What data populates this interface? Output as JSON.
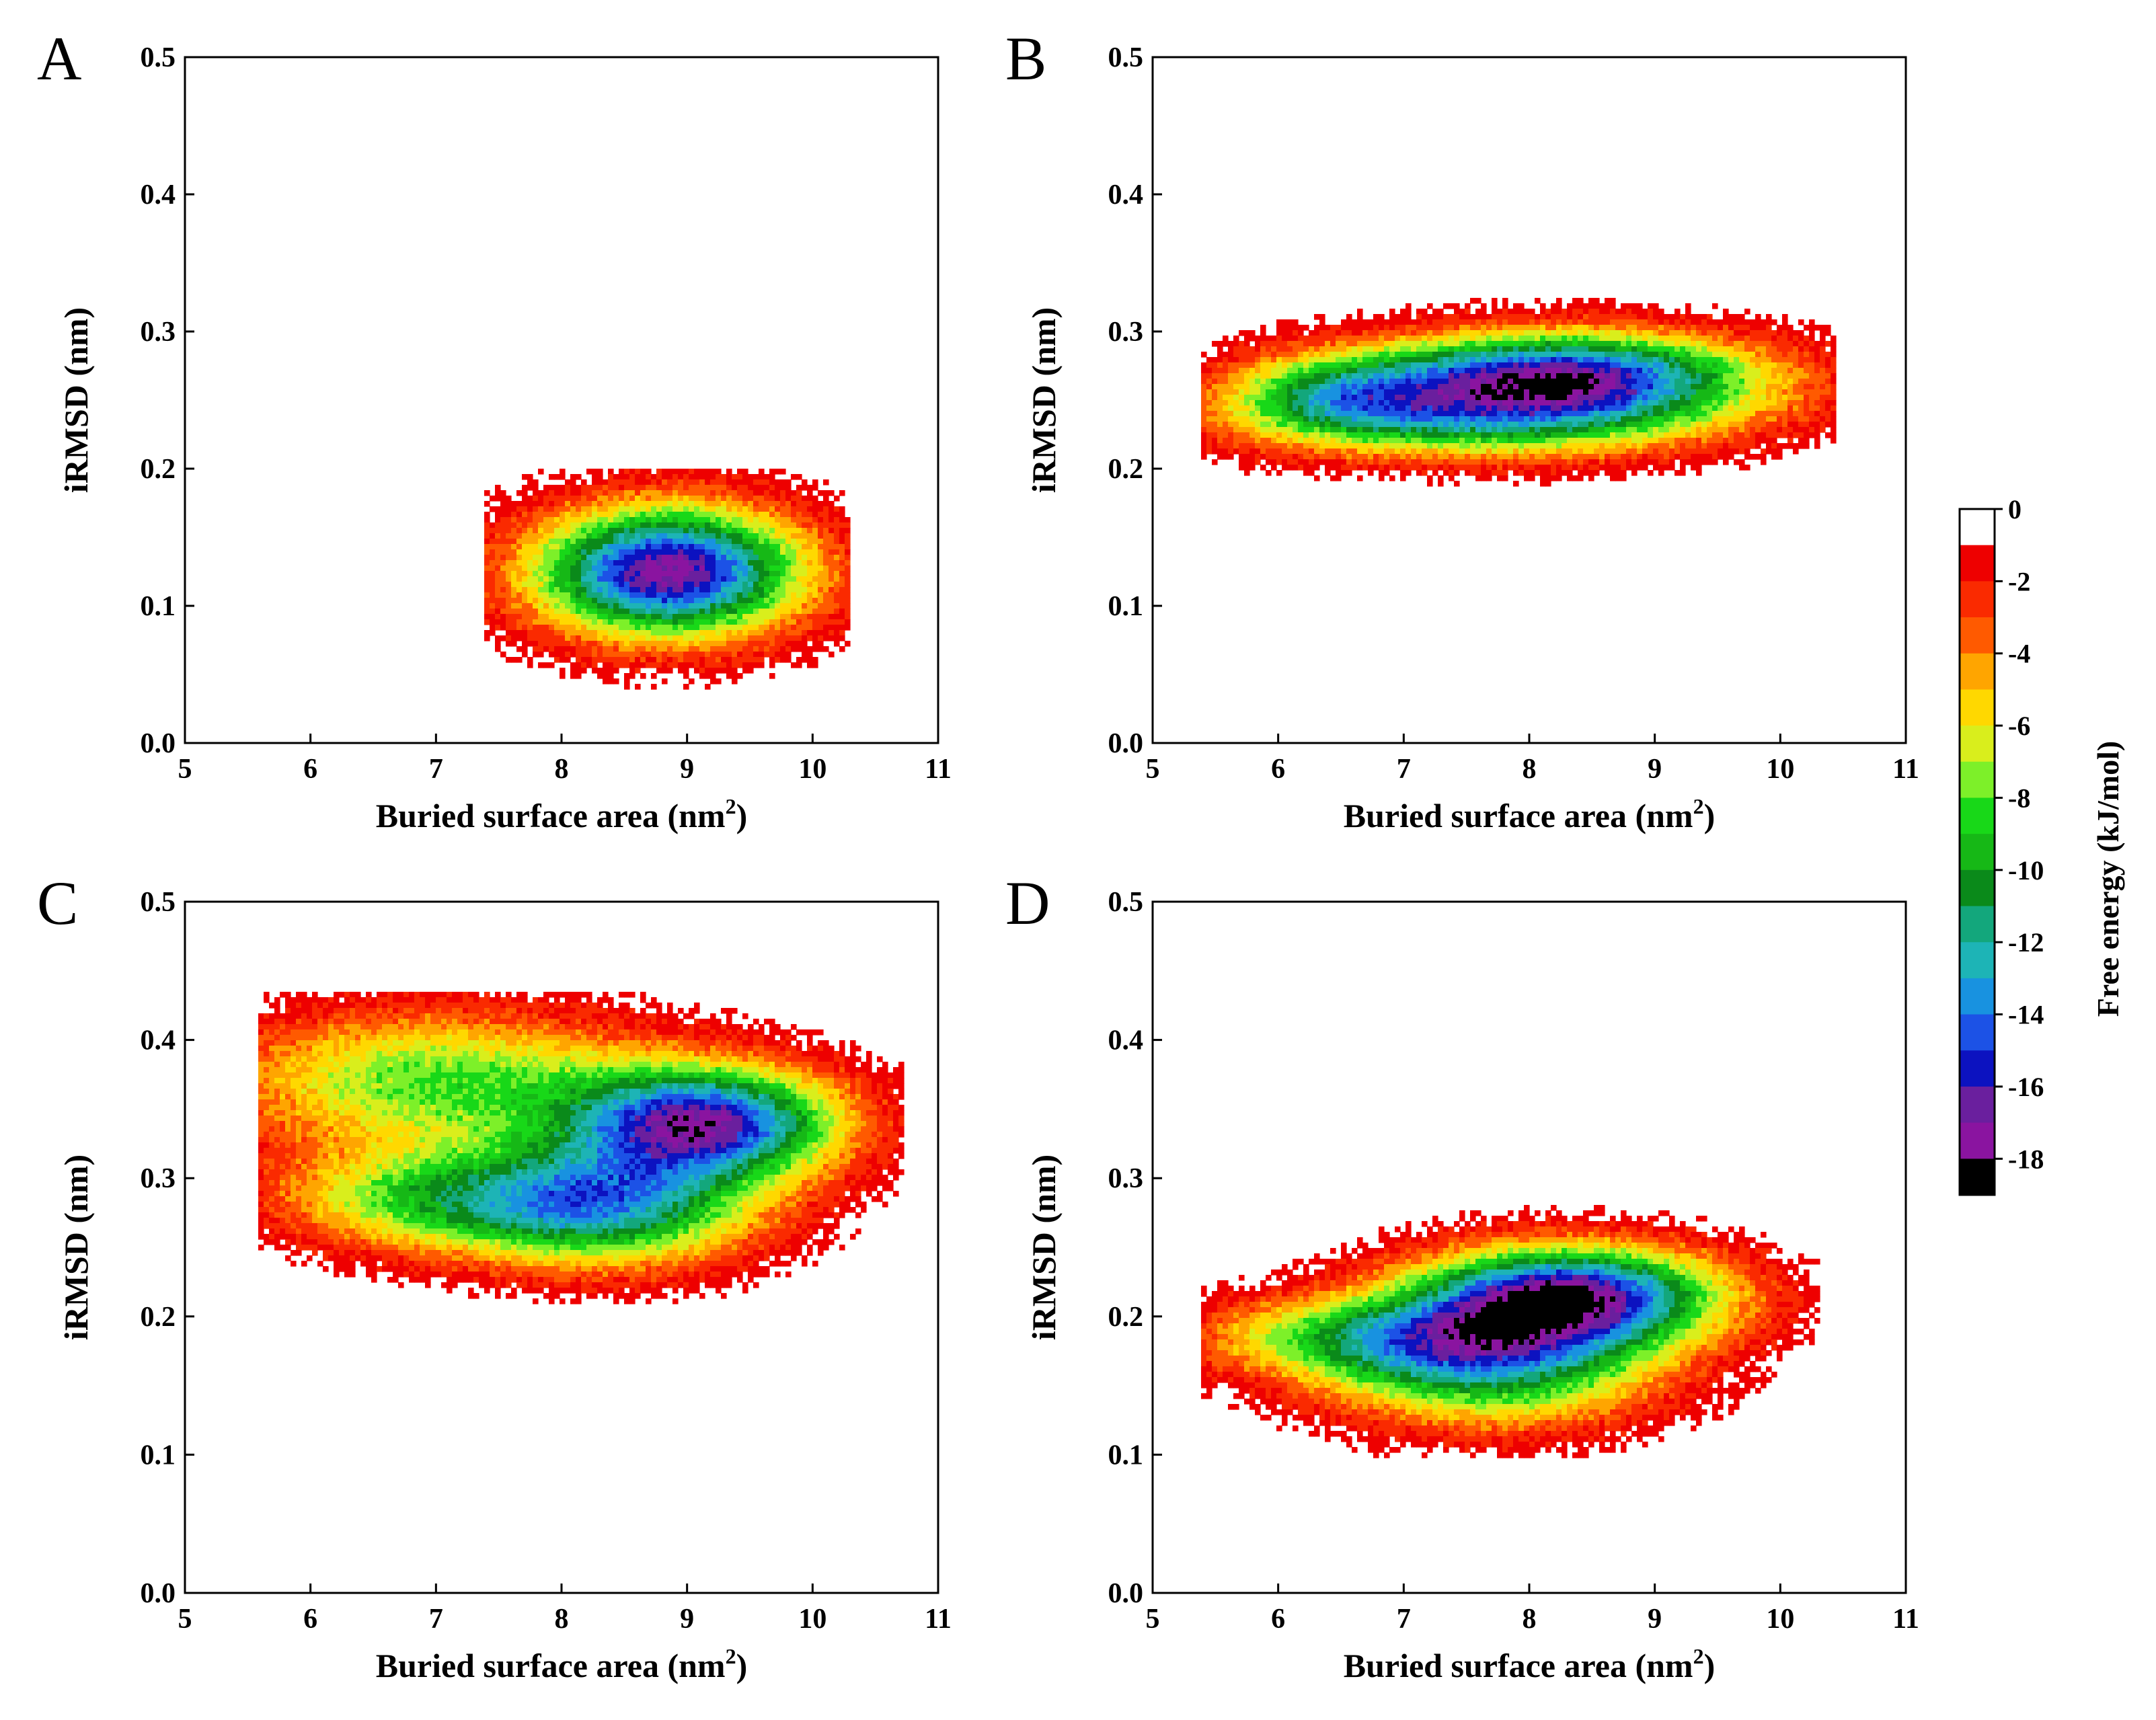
{
  "chart_data": [
    {
      "type": "heatmap",
      "panel": "A",
      "xlabel": "Buried surface area  (nm",
      "xlabel_sup": "2",
      "xlabel_close": ")",
      "ylabel": "iRMSD  (nm)",
      "xlim": [
        5,
        11
      ],
      "ylim": [
        0.0,
        0.5
      ],
      "xticks": [
        "5",
        "6",
        "7",
        "8",
        "9",
        "10",
        "11"
      ],
      "yticks": [
        "0.0",
        "0.1",
        "0.2",
        "0.3",
        "0.4",
        "0.5"
      ],
      "basins": [
        {
          "x": 8.85,
          "y": 0.125,
          "sx": 0.75,
          "sy": 0.033,
          "depth": 17.5
        }
      ],
      "extent": {
        "x": [
          7.6,
          10.05
        ],
        "y": [
          0.06,
          0.18
        ]
      }
    },
    {
      "type": "heatmap",
      "panel": "B",
      "xlabel": "Buried surface area  (nm",
      "xlabel_sup": "2",
      "xlabel_close": ")",
      "ylabel": "iRMSD  (nm)",
      "xlim": [
        5,
        11
      ],
      "ylim": [
        0.0,
        0.5
      ],
      "xticks": [
        "5",
        "6",
        "7",
        "8",
        "9",
        "10",
        "11"
      ],
      "yticks": [
        "0.0",
        "0.1",
        "0.2",
        "0.3",
        "0.4",
        "0.5"
      ],
      "basins": [
        {
          "x": 8.25,
          "y": 0.268,
          "sx": 1.1,
          "sy": 0.022,
          "depth": 16.0
        },
        {
          "x": 7.6,
          "y": 0.235,
          "sx": 1.3,
          "sy": 0.02,
          "depth": 9.0
        },
        {
          "x": 6.4,
          "y": 0.255,
          "sx": 0.6,
          "sy": 0.02,
          "depth": 6.5
        }
      ],
      "extent": {
        "x": [
          5.6,
          10.2
        ],
        "y": [
          0.195,
          0.34
        ]
      }
    },
    {
      "type": "heatmap",
      "panel": "C",
      "xlabel": "Buried surface area  (nm",
      "xlabel_sup": "2",
      "xlabel_close": ")",
      "ylabel": "iRMSD  (nm)",
      "xlim": [
        5,
        11
      ],
      "ylim": [
        0.0,
        0.5
      ],
      "xticks": [
        "5",
        "6",
        "7",
        "8",
        "9",
        "10",
        "11"
      ],
      "yticks": [
        "0.0",
        "0.1",
        "0.2",
        "0.3",
        "0.4",
        "0.5"
      ],
      "basins": [
        {
          "x": 9.15,
          "y": 0.34,
          "sx": 0.75,
          "sy": 0.028,
          "depth": 15.5
        },
        {
          "x": 8.3,
          "y": 0.28,
          "sx": 0.85,
          "sy": 0.03,
          "depth": 12.5
        },
        {
          "x": 7.0,
          "y": 0.37,
          "sx": 1.2,
          "sy": 0.035,
          "depth": 8.0
        },
        {
          "x": 6.8,
          "y": 0.285,
          "sx": 0.8,
          "sy": 0.025,
          "depth": 6.5
        }
      ],
      "extent": {
        "x": [
          5.8,
          10.5
        ],
        "y": [
          0.23,
          0.415
        ]
      }
    },
    {
      "type": "heatmap",
      "panel": "D",
      "xlabel": "Buried surface area  (nm",
      "xlabel_sup": "2",
      "xlabel_close": ")",
      "ylabel": "iRMSD  (nm)",
      "xlim": [
        5,
        11
      ],
      "ylim": [
        0.0,
        0.5
      ],
      "xticks": [
        "5",
        "6",
        "7",
        "8",
        "9",
        "10",
        "11"
      ],
      "yticks": [
        "0.0",
        "0.1",
        "0.2",
        "0.3",
        "0.4",
        "0.5"
      ],
      "basins": [
        {
          "x": 8.3,
          "y": 0.215,
          "sx": 0.85,
          "sy": 0.025,
          "depth": 17.0
        },
        {
          "x": 7.7,
          "y": 0.165,
          "sx": 0.9,
          "sy": 0.03,
          "depth": 11.0
        },
        {
          "x": 6.6,
          "y": 0.185,
          "sx": 0.9,
          "sy": 0.02,
          "depth": 7.0
        }
      ],
      "extent": {
        "x": [
          5.6,
          10.1
        ],
        "y": [
          0.12,
          0.265
        ]
      }
    }
  ],
  "colorbar": {
    "title": "Free energy  (kJ/mol)",
    "range": [
      -19,
      0
    ],
    "tick_labels": [
      "0",
      "-2",
      "-4",
      "-6",
      "-8",
      "-10",
      "-12",
      "-14",
      "-16",
      "-18"
    ],
    "levels": [
      {
        "upper": 0,
        "color": "#ffffff"
      },
      {
        "upper": -1,
        "color": "#ee0000"
      },
      {
        "upper": -2,
        "color": "#fa2a00"
      },
      {
        "upper": -3,
        "color": "#ff5a00"
      },
      {
        "upper": -4,
        "color": "#ffa500"
      },
      {
        "upper": -5,
        "color": "#ffd800"
      },
      {
        "upper": -6,
        "color": "#d9ee1c"
      },
      {
        "upper": -7,
        "color": "#7df029"
      },
      {
        "upper": -8,
        "color": "#18d818"
      },
      {
        "upper": -9,
        "color": "#16b816"
      },
      {
        "upper": -10,
        "color": "#0a8a1a"
      },
      {
        "upper": -11,
        "color": "#13a77c"
      },
      {
        "upper": -12,
        "color": "#1db4b6"
      },
      {
        "upper": -13,
        "color": "#1892e0"
      },
      {
        "upper": -14,
        "color": "#1c52e6"
      },
      {
        "upper": -15,
        "color": "#0c12c0"
      },
      {
        "upper": -16,
        "color": "#6a1f9e"
      },
      {
        "upper": -17,
        "color": "#8a14a0"
      },
      {
        "upper": -18,
        "color": "#000000"
      }
    ]
  }
}
